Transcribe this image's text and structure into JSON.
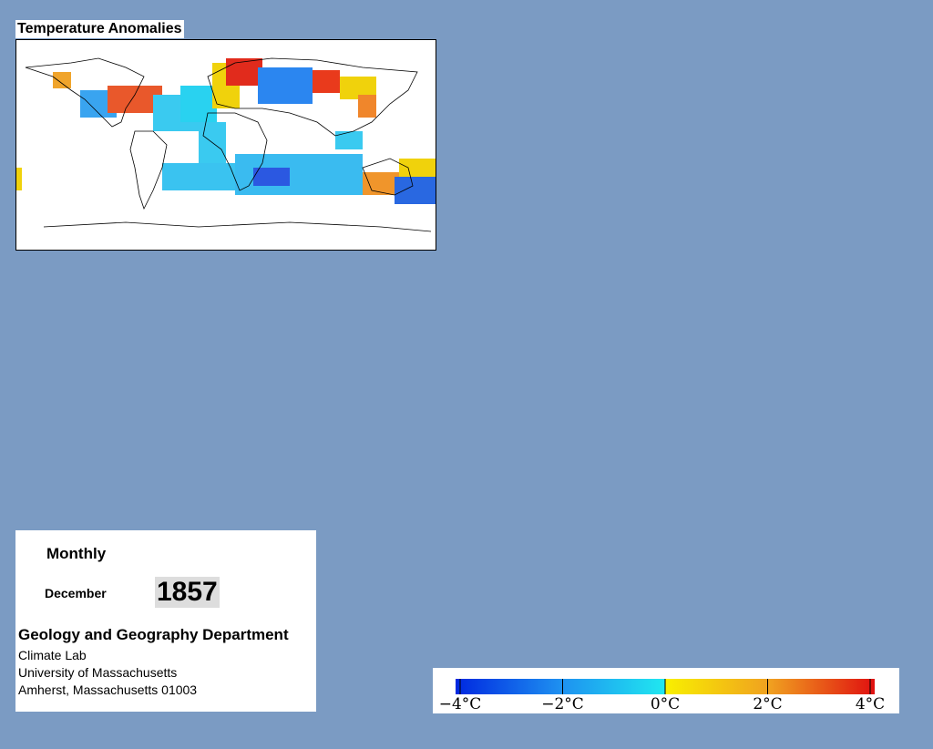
{
  "title": "Temperature Anomalies",
  "info": {
    "period": "Monthly",
    "month": "December",
    "year": "1857",
    "department": "Geology and Geography Department",
    "lines": [
      "Climate Lab",
      "University of Massachusetts",
      "Amherst, Massachusetts 01003"
    ]
  },
  "colorbar": {
    "lim": [
      -4,
      4
    ],
    "ticks": [
      {
        "value": -4,
        "label": "−4°C"
      },
      {
        "value": -2,
        "label": "−2°C"
      },
      {
        "value": 0,
        "label": "0°C"
      },
      {
        "value": 2,
        "label": "2°C"
      },
      {
        "value": 4,
        "label": "4°C"
      }
    ]
  }
}
